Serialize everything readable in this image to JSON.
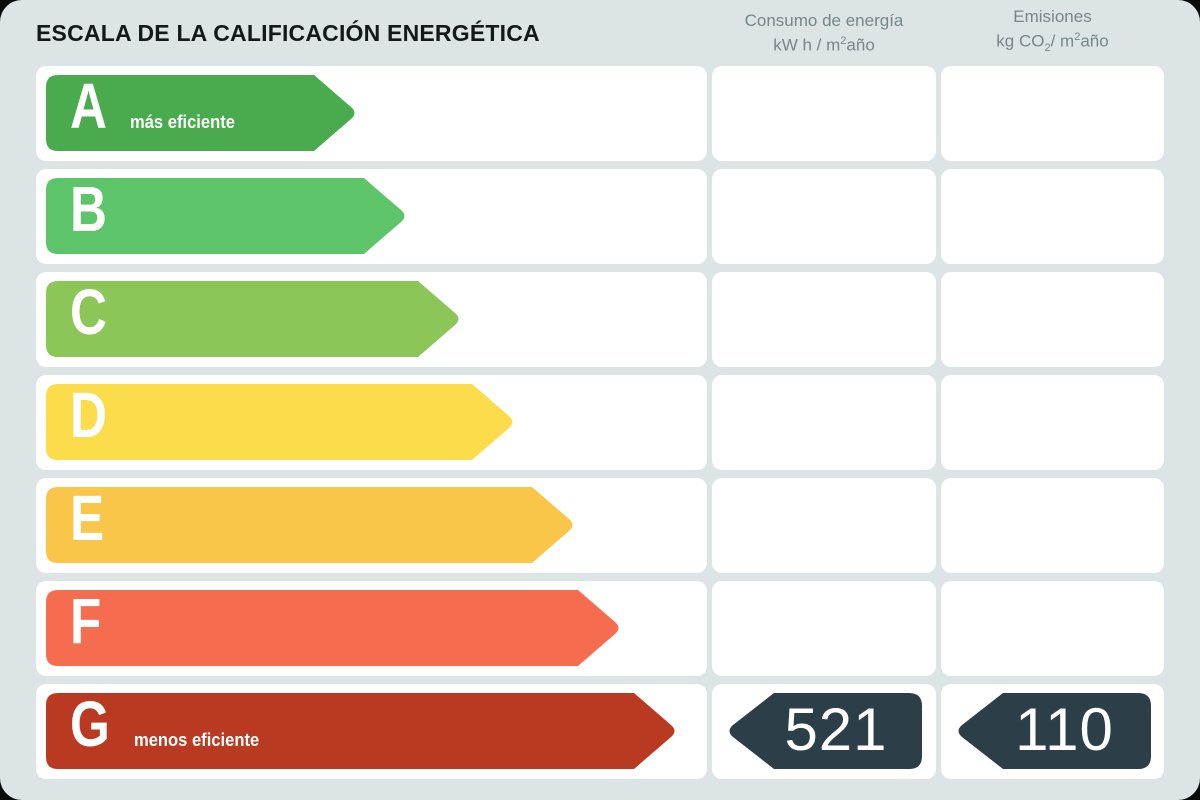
{
  "page": {
    "title": "ESCALA DE LA CALIFICACIÓN ENERGÉTICA",
    "background_color": "#dce4e6",
    "card_color": "#ffffff",
    "header_text_color": "#76878b"
  },
  "columns": {
    "consumo": {
      "line1": "Consumo de energía",
      "line2_prefix": "kW h / m",
      "line2_sup": "2",
      "line2_suffix": "año"
    },
    "emisiones": {
      "line1": "Emisiones",
      "line2_prefix": "kg CO",
      "line2_sub": "2",
      "line2_mid": "/ m",
      "line2_sup": "2",
      "line2_suffix": "año"
    }
  },
  "scale": {
    "rows": [
      {
        "letter": "A",
        "note": "más eficiente",
        "color": "#49ab4e",
        "arrow_width": 312
      },
      {
        "letter": "B",
        "color": "#5ec469",
        "arrow_width": 362
      },
      {
        "letter": "C",
        "color": "#8cc558",
        "arrow_width": 416
      },
      {
        "letter": "D",
        "color": "#fbdd4b",
        "arrow_width": 470
      },
      {
        "letter": "E",
        "color": "#f9c64a",
        "arrow_width": 530
      },
      {
        "letter": "F",
        "color": "#f66c4f",
        "arrow_width": 576
      },
      {
        "letter": "G",
        "note": "menos eficiente",
        "color": "#b93a20",
        "arrow_width": 632
      }
    ]
  },
  "values": {
    "consumption": "521",
    "emissions": "110",
    "badge_color": "#2c3e47",
    "badge_text_color": "#ffffff",
    "badge_width": 196
  },
  "chart_data": {
    "type": "bar",
    "title": "ESCALA DE LA CALIFICACIÓN ENERGÉTICA",
    "categories": [
      "A",
      "B",
      "C",
      "D",
      "E",
      "F",
      "G"
    ],
    "series": [
      {
        "name": "relative_arrow_length_px",
        "values": [
          312,
          362,
          416,
          470,
          530,
          576,
          632
        ]
      }
    ],
    "colors": [
      "#49ab4e",
      "#5ec469",
      "#8cc558",
      "#fbdd4b",
      "#f9c64a",
      "#f66c4f",
      "#b93a20"
    ],
    "annotations": {
      "most_efficient_label": "más eficiente",
      "least_efficient_label": "menos eficiente",
      "rated_class": "G",
      "consumo_kwh_m2_ano": 521,
      "emisiones_kgco2_m2_ano": 110
    },
    "legend": false,
    "orientation": "horizontal"
  }
}
